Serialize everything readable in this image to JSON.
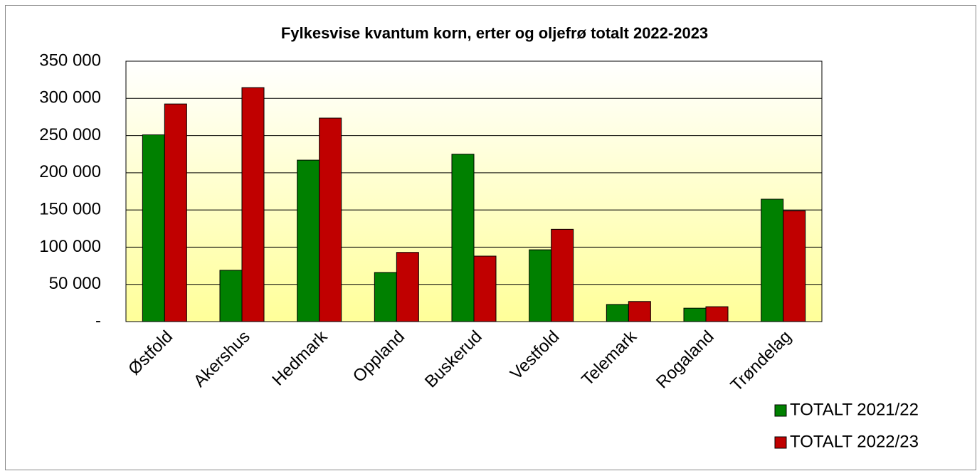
{
  "chart_data": {
    "type": "bar",
    "title": "Fylkesvise kvantum korn, erter og oljefrø totalt 2022-2023",
    "categories": [
      "Østfold",
      "Akershus",
      "Hedmark",
      "Oppland",
      "Buskerud",
      "Vestfold",
      "Telemark",
      "Rogaland",
      "Trøndelag"
    ],
    "series": [
      {
        "name": "TOTALT 2021/22",
        "color": "#008000",
        "values": [
          251000,
          69000,
          217000,
          66000,
          225000,
          96500,
          23000,
          18000,
          164500
        ]
      },
      {
        "name": "TOTALT 2022/23",
        "color": "#c00000",
        "values": [
          292500,
          314500,
          273500,
          93000,
          88000,
          124000,
          27000,
          20000,
          149000
        ]
      }
    ],
    "ylim": [
      0,
      350000
    ],
    "yticks": [
      {
        "value": 0,
        "label": "-"
      },
      {
        "value": 50000,
        "label": "50 000"
      },
      {
        "value": 100000,
        "label": "100 000"
      },
      {
        "value": 150000,
        "label": "150 000"
      },
      {
        "value": 200000,
        "label": "200 000"
      },
      {
        "value": 250000,
        "label": "250 000"
      },
      {
        "value": 300000,
        "label": "300 000"
      },
      {
        "value": 350000,
        "label": "350 000"
      }
    ],
    "grid": true,
    "legend": "bottom-right"
  }
}
